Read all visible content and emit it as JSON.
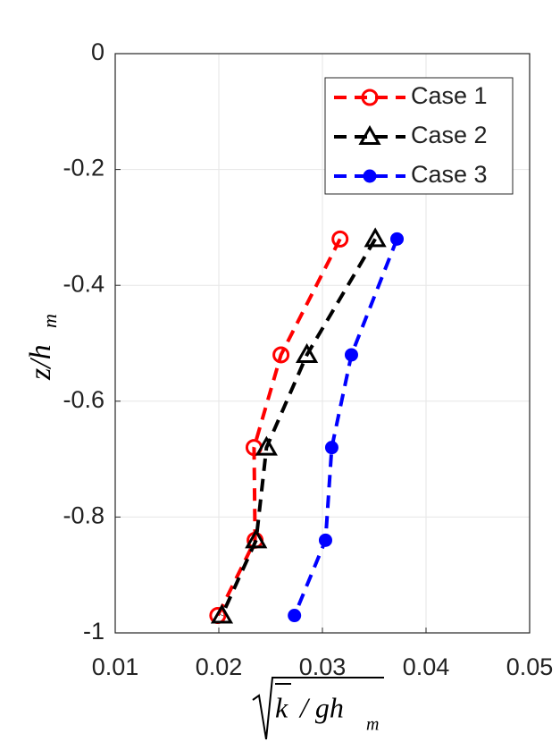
{
  "chart_data": {
    "type": "line",
    "xlabel": [
      "k",
      "/ gh",
      "m"
    ],
    "ylabel": [
      "z/h",
      "m"
    ],
    "xlim": [
      0.01,
      0.05
    ],
    "xticks": [
      0.01,
      0.02,
      0.03,
      0.04,
      0.05
    ],
    "ylim": [
      -1,
      0
    ],
    "yticks": [
      -1,
      -0.8,
      -0.6,
      -0.4,
      -0.2,
      0
    ],
    "grid": true,
    "legend": "upper right",
    "series": [
      {
        "name": "Case 1",
        "color": "#ff0000",
        "marker": "open-circle",
        "x": [
          0.0317,
          0.026,
          0.0234,
          0.0235,
          0.0199
        ],
        "values": [
          -0.32,
          -0.52,
          -0.68,
          -0.84,
          -0.97
        ]
      },
      {
        "name": "Case 2",
        "color": "#000000",
        "marker": "open-triangle",
        "x": [
          0.0351,
          0.0285,
          0.0246,
          0.0236,
          0.0203
        ],
        "values": [
          -0.32,
          -0.52,
          -0.68,
          -0.84,
          -0.97
        ]
      },
      {
        "name": "Case 3",
        "color": "#0000ff",
        "marker": "filled-circle",
        "x": [
          0.0372,
          0.0328,
          0.0309,
          0.0303,
          0.0273
        ],
        "values": [
          -0.32,
          -0.52,
          -0.68,
          -0.84,
          -0.97
        ]
      }
    ]
  }
}
